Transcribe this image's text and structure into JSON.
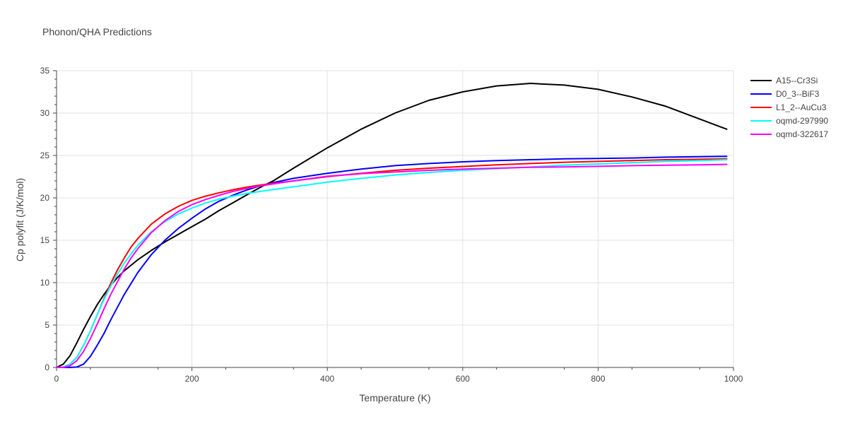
{
  "chart_data": {
    "type": "line",
    "title": "Phonon/QHA Predictions",
    "xlabel": "Temperature (K)",
    "ylabel": "Cp polyfit (J/K/mol)",
    "xlim": [
      0,
      1000
    ],
    "ylim": [
      0,
      35
    ],
    "xticks": [
      0,
      200,
      400,
      600,
      800,
      1000
    ],
    "yticks": [
      0,
      5,
      10,
      15,
      20,
      25,
      30,
      35
    ],
    "grid": true,
    "legend_position": "right",
    "series": [
      {
        "name": "A15--Cr3Si",
        "color": "#000000",
        "x": [
          0,
          10,
          20,
          30,
          40,
          50,
          60,
          70,
          80,
          90,
          100,
          120,
          140,
          160,
          180,
          200,
          220,
          240,
          260,
          280,
          300,
          320,
          350,
          400,
          450,
          500,
          550,
          600,
          650,
          700,
          750,
          800,
          850,
          900,
          950,
          990
        ],
        "y": [
          0,
          0.4,
          1.4,
          2.9,
          4.5,
          6.0,
          7.4,
          8.6,
          9.7,
          10.6,
          11.4,
          12.7,
          13.8,
          14.8,
          15.7,
          16.6,
          17.5,
          18.5,
          19.4,
          20.3,
          21.2,
          22.0,
          23.5,
          25.9,
          28.1,
          30.0,
          31.5,
          32.5,
          33.2,
          33.5,
          33.3,
          32.8,
          31.9,
          30.8,
          29.3,
          28.1
        ]
      },
      {
        "name": "D0_3--BiF3",
        "color": "#0000ff",
        "x": [
          0,
          20,
          30,
          40,
          50,
          60,
          70,
          80,
          90,
          100,
          120,
          140,
          160,
          180,
          200,
          220,
          240,
          260,
          280,
          300,
          320,
          350,
          400,
          450,
          500,
          550,
          600,
          650,
          700,
          750,
          800,
          850,
          900,
          950,
          990
        ],
        "y": [
          0,
          0,
          0.05,
          0.4,
          1.3,
          2.6,
          4.0,
          5.6,
          7.1,
          8.6,
          11.2,
          13.3,
          15.0,
          16.4,
          17.6,
          18.7,
          19.6,
          20.3,
          20.9,
          21.4,
          21.8,
          22.3,
          22.9,
          23.4,
          23.8,
          24.05,
          24.25,
          24.4,
          24.5,
          24.6,
          24.65,
          24.7,
          24.8,
          24.85,
          24.9
        ]
      },
      {
        "name": "L1_2--AuCu3",
        "color": "#ff0000",
        "x": [
          0,
          10,
          20,
          30,
          40,
          50,
          60,
          70,
          80,
          90,
          100,
          110,
          120,
          140,
          160,
          180,
          200,
          220,
          240,
          260,
          280,
          300,
          350,
          400,
          450,
          500,
          550,
          600,
          650,
          700,
          750,
          800,
          850,
          900,
          950,
          990
        ],
        "y": [
          0,
          0.05,
          0.4,
          1.2,
          2.6,
          4.3,
          6.2,
          8.1,
          9.9,
          11.5,
          12.9,
          14.2,
          15.2,
          16.9,
          18.1,
          19.0,
          19.7,
          20.2,
          20.6,
          20.95,
          21.25,
          21.5,
          22.0,
          22.5,
          22.9,
          23.25,
          23.5,
          23.7,
          23.9,
          24.05,
          24.2,
          24.3,
          24.4,
          24.5,
          24.55,
          24.6
        ]
      },
      {
        "name": "oqmd-297990",
        "color": "#00ffff",
        "x": [
          0,
          10,
          20,
          30,
          40,
          50,
          60,
          70,
          80,
          90,
          100,
          110,
          120,
          140,
          160,
          180,
          200,
          220,
          240,
          260,
          280,
          300,
          350,
          400,
          450,
          500,
          550,
          600,
          650,
          700,
          750,
          800,
          850,
          900,
          950,
          990
        ],
        "y": [
          0,
          0.05,
          0.4,
          1.2,
          2.6,
          4.3,
          6.2,
          8.0,
          9.6,
          11.0,
          12.3,
          13.4,
          14.4,
          16.0,
          17.2,
          18.1,
          18.8,
          19.4,
          19.85,
          20.2,
          20.5,
          20.75,
          21.3,
          21.85,
          22.3,
          22.7,
          23.0,
          23.25,
          23.45,
          23.65,
          23.85,
          24.0,
          24.15,
          24.3,
          24.4,
          24.5
        ]
      },
      {
        "name": "oqmd-322617",
        "color": "#ff00ff",
        "x": [
          0,
          10,
          20,
          30,
          40,
          50,
          60,
          70,
          80,
          90,
          100,
          110,
          120,
          140,
          160,
          180,
          200,
          220,
          240,
          260,
          280,
          300,
          350,
          400,
          450,
          500,
          550,
          600,
          650,
          700,
          750,
          800,
          850,
          900,
          950,
          990
        ],
        "y": [
          0,
          0.02,
          0.2,
          0.8,
          1.9,
          3.4,
          5.1,
          6.9,
          8.6,
          10.1,
          11.6,
          12.9,
          14.0,
          15.9,
          17.3,
          18.4,
          19.2,
          19.8,
          20.3,
          20.75,
          21.1,
          21.4,
          22.0,
          22.55,
          22.85,
          23.05,
          23.25,
          23.4,
          23.5,
          23.6,
          23.65,
          23.72,
          23.8,
          23.85,
          23.9,
          23.95
        ]
      }
    ]
  }
}
